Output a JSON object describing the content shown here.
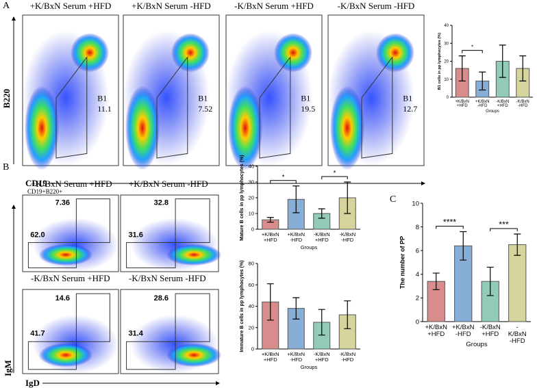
{
  "panel_a": {
    "label": "A",
    "x_label": "CD19",
    "y_label": "B220",
    "plots": [
      {
        "title": "+K/BxN Serum  +HFD",
        "gate": "B1",
        "value": "11.1"
      },
      {
        "title": "+K/BxN Serum  -HFD",
        "gate": "B1",
        "value": "7.52"
      },
      {
        "title": "-K/BxN Serum  +HFD",
        "gate": "B1",
        "value": "19.5"
      },
      {
        "title": "-K/BxN Serum  -HFD",
        "gate": "B1",
        "value": "12.7"
      }
    ]
  },
  "panel_b": {
    "label": "B",
    "subtitle": "CD19+B220+",
    "x_label": "IgD",
    "y_label": "IgM",
    "plots": [
      {
        "title": "+K/BxN Serum  +HFD",
        "upper": "7.36",
        "lower": "62.0"
      },
      {
        "title": "+K/BxN Serum  -HFD",
        "upper": "32.8",
        "lower": "31.6"
      },
      {
        "title": "-K/BxN Serum  +HFD",
        "upper": "14.6",
        "lower": "41.7"
      },
      {
        "title": "-K/BxN Serum  -HFD",
        "upper": "28.6",
        "lower": "31.4"
      }
    ]
  },
  "panel_c": {
    "label": "C"
  },
  "chart_data": [
    {
      "type": "bar",
      "y_label": "B1 cells in pp lymphocytes (%)",
      "x_label": "Groups",
      "categories": [
        "+K/BxN\n+HFD",
        "+K/BxN\n-HFD",
        "-K/BxN\n+HFD",
        "-K/BxN\n-HFD"
      ],
      "values": [
        16,
        9,
        20,
        16
      ],
      "errors": [
        7,
        5,
        9,
        7
      ],
      "colors": [
        "#d98c8c",
        "#86aed6",
        "#92ccb6",
        "#d4d49c"
      ],
      "ylim": [
        0,
        40
      ],
      "yticks": [
        0,
        10,
        20,
        30,
        40
      ],
      "annotations": [
        "*"
      ]
    },
    {
      "type": "bar",
      "y_label": "Mature B cells in pp lymphocytes (%)",
      "x_label": "Groups",
      "categories": [
        "+K/BxN\n+HFD",
        "+K/BxN\n-HFD",
        "-K/BxN\n+HFD",
        "-K/BxN\n-HFD"
      ],
      "values": [
        6,
        19,
        10,
        20
      ],
      "errors": [
        1.5,
        8.5,
        3,
        10
      ],
      "colors": [
        "#d98c8c",
        "#86aed6",
        "#92ccb6",
        "#d4d49c"
      ],
      "ylim": [
        0,
        40
      ],
      "yticks": [
        0,
        10,
        20,
        30,
        40
      ],
      "annotations": [
        "*",
        "*"
      ]
    },
    {
      "type": "bar",
      "y_label": "Immature B cells in pp lymphocytes (%)",
      "x_label": "Groups",
      "categories": [
        "+K/BxN\n+HFD",
        "+K/BxN\n-HFD",
        "-K/BxN\n+HFD",
        "-K/BxN\n-HFD"
      ],
      "values": [
        44,
        38,
        25,
        32
      ],
      "errors": [
        17,
        10,
        12,
        13
      ],
      "colors": [
        "#d98c8c",
        "#86aed6",
        "#92ccb6",
        "#d4d49c"
      ],
      "ylim": [
        0,
        80
      ],
      "yticks": [
        0,
        20,
        40,
        60,
        80
      ],
      "annotations": []
    },
    {
      "type": "bar",
      "y_label": "The number of PP",
      "x_label": "Groups",
      "categories": [
        "+K/BxN\n+HFD",
        "+K/BxN\n-HFD",
        "-K/BxN\n+HFD",
        "-K/BxN\n-HFD"
      ],
      "values": [
        3.4,
        6.4,
        3.4,
        6.5
      ],
      "errors": [
        0.7,
        1.2,
        1.2,
        0.9
      ],
      "colors": [
        "#d98c8c",
        "#86aed6",
        "#92ccb6",
        "#d4d49c"
      ],
      "ylim": [
        0,
        10
      ],
      "yticks": [
        0,
        2,
        4,
        6,
        8,
        10
      ],
      "annotations": [
        "****",
        "***"
      ]
    }
  ]
}
